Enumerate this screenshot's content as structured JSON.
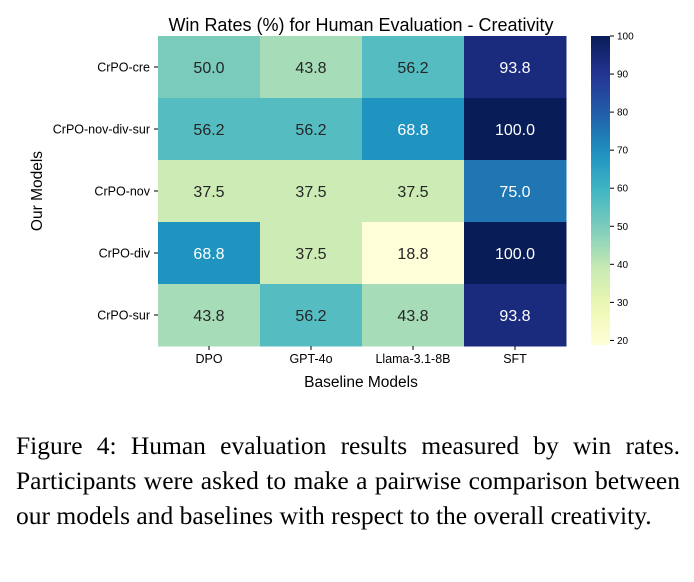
{
  "chart_data": {
    "type": "heatmap",
    "title": "Win Rates (%) for Human Evaluation - Creativity",
    "xlabel": "Baseline Models",
    "ylabel": "Our Models",
    "x_categories": [
      "DPO",
      "GPT-4o",
      "Llama-3.1-8B",
      "SFT"
    ],
    "y_categories": [
      "CrPO-cre",
      "CrPO-nov-div-sur",
      "CrPO-nov",
      "CrPO-div",
      "CrPO-sur"
    ],
    "values": [
      [
        50.0,
        43.8,
        56.2,
        93.8
      ],
      [
        56.2,
        56.2,
        68.8,
        100.0
      ],
      [
        37.5,
        37.5,
        37.5,
        75.0
      ],
      [
        68.8,
        37.5,
        18.8,
        100.0
      ],
      [
        43.8,
        56.2,
        43.8,
        93.8
      ]
    ],
    "value_format": "0.0",
    "colormap": "YlGnBu",
    "colorbar": {
      "min": 18.8,
      "max": 100.0,
      "ticks": [
        20,
        30,
        40,
        50,
        60,
        70,
        80,
        90,
        100
      ]
    }
  },
  "caption": "Figure 4: Human evaluation results measured by win rates. Participants were asked to make a pairwise comparison between our models and baselines with respect to the overall creativity."
}
